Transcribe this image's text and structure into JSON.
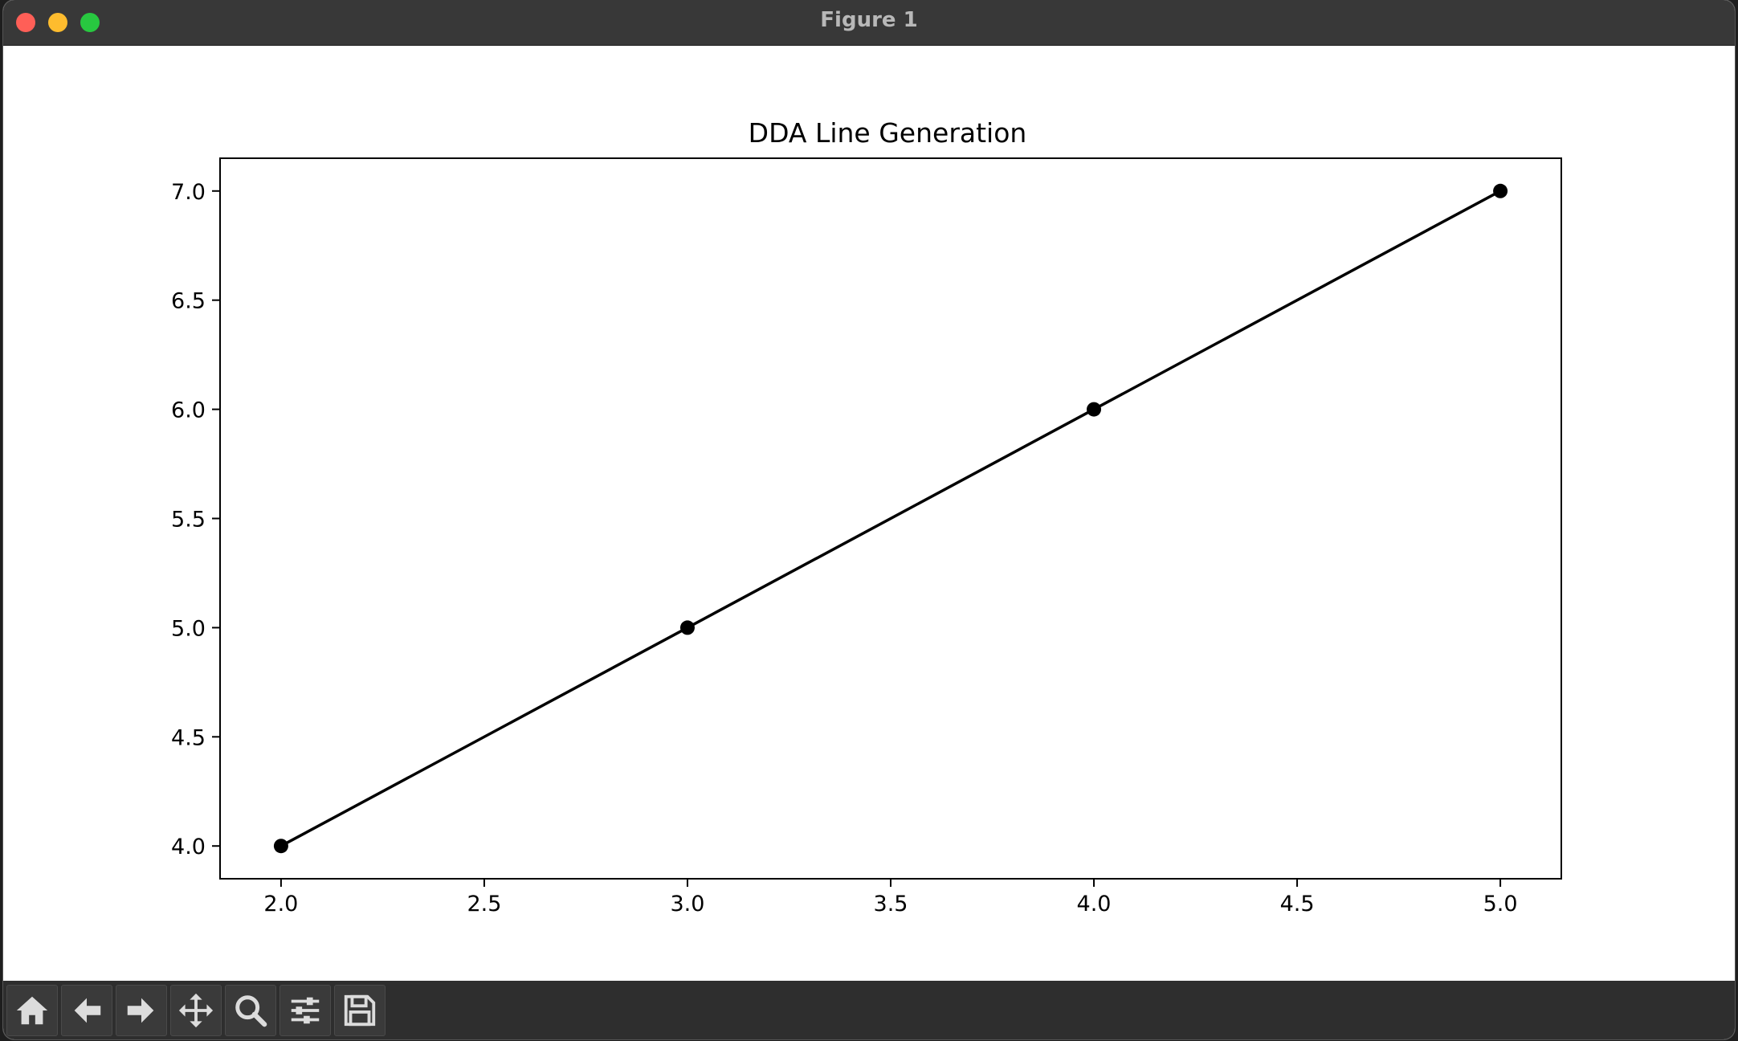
{
  "window": {
    "title": "Figure 1"
  },
  "toolbar": {
    "buttons": [
      {
        "name": "home",
        "icon": "home-icon"
      },
      {
        "name": "back",
        "icon": "arrow-left-icon"
      },
      {
        "name": "forward",
        "icon": "arrow-right-icon"
      },
      {
        "name": "pan",
        "icon": "move-icon"
      },
      {
        "name": "zoom",
        "icon": "magnifier-icon"
      },
      {
        "name": "configure-subplots",
        "icon": "sliders-icon"
      },
      {
        "name": "save",
        "icon": "floppy-disk-icon"
      }
    ]
  },
  "chart_data": {
    "type": "line",
    "title": "DDA Line Generation",
    "xlabel": "",
    "ylabel": "",
    "x": [
      2,
      3,
      4,
      5
    ],
    "series": [
      {
        "values": [
          4,
          5,
          6,
          7
        ],
        "color": "#000000",
        "marker": "circle"
      }
    ],
    "xlim": [
      1.85,
      5.15
    ],
    "ylim": [
      3.85,
      7.15
    ],
    "xticks": [
      "2.0",
      "2.5",
      "3.0",
      "3.5",
      "4.0",
      "4.5",
      "5.0"
    ],
    "yticks": [
      "4.0",
      "4.5",
      "5.0",
      "5.5",
      "6.0",
      "6.5",
      "7.0"
    ],
    "grid": false,
    "legend": "none"
  }
}
